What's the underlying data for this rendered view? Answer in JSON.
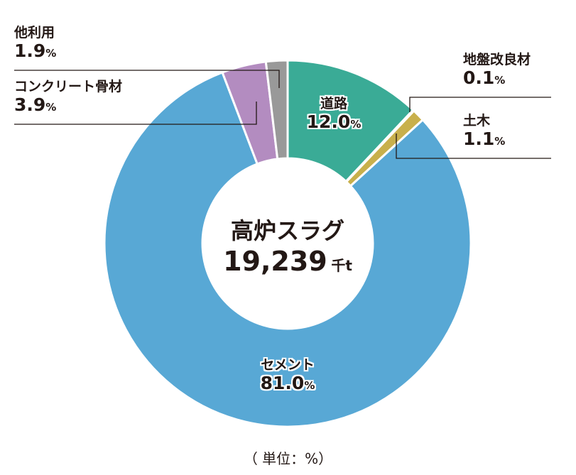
{
  "chart_data": {
    "type": "pie",
    "donut": true,
    "title": "高炉スラグ",
    "total": "19,239",
    "total_unit": "千t",
    "unit_note": "（ 単位：%）",
    "percent_sign": "%",
    "slices": [
      {
        "label": "道路",
        "value": 12.0,
        "display": "12.0",
        "color": "#3aab96"
      },
      {
        "label": "地盤改良材",
        "value": 0.1,
        "display": "0.1",
        "color": "#c8b04c"
      },
      {
        "label": "土木",
        "value": 1.1,
        "display": "1.1",
        "color": "#c8b04c"
      },
      {
        "label": "セメント",
        "value": 81.0,
        "display": "81.0",
        "color": "#58a8d5"
      },
      {
        "label": "コンクリート骨材",
        "value": 3.9,
        "display": "3.9",
        "color": "#b38cc0"
      },
      {
        "label": "他利用",
        "value": 1.9,
        "display": "1.9",
        "color": "#999999"
      }
    ]
  }
}
